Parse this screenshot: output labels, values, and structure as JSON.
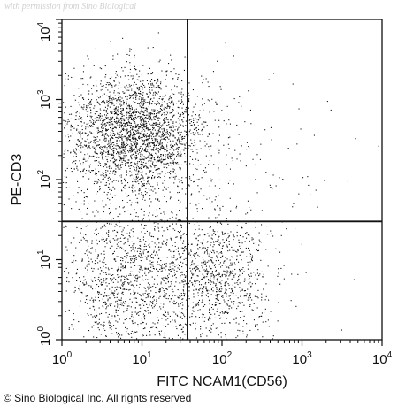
{
  "watermark": "with permission from Sino Biological",
  "copyright": "© Sino Biological Inc. All rights reserved",
  "chart_data": {
    "type": "scatter",
    "scale": "log",
    "x_axis": {
      "label": "FITC NCAM1(CD56)",
      "range": [
        1,
        10000
      ],
      "ticks": [
        {
          "value": 1,
          "base": "10",
          "exp": "0"
        },
        {
          "value": 10,
          "base": "10",
          "exp": "1"
        },
        {
          "value": 100,
          "base": "10",
          "exp": "2"
        },
        {
          "value": 1000,
          "base": "10",
          "exp": "3"
        },
        {
          "value": 10000,
          "base": "10",
          "exp": "4"
        }
      ]
    },
    "y_axis": {
      "label": "PE-CD3",
      "range": [
        1,
        10000
      ],
      "ticks": [
        {
          "value": 1,
          "base": "10",
          "exp": "0"
        },
        {
          "value": 10,
          "base": "10",
          "exp": "1"
        },
        {
          "value": 100,
          "base": "10",
          "exp": "2"
        },
        {
          "value": 1000,
          "base": "10",
          "exp": "3"
        },
        {
          "value": 10000,
          "base": "10",
          "exp": "4"
        }
      ]
    },
    "quadrant_gate": {
      "x": 37,
      "y": 30
    },
    "populations": [
      {
        "center_x": 8,
        "center_y": 380,
        "count": 2700,
        "spread_x_decades": 0.45,
        "spread_y_decades": 0.38
      },
      {
        "center_x": 8,
        "center_y": 6,
        "count": 1300,
        "spread_x_decades": 0.45,
        "spread_y_decades": 0.45
      },
      {
        "center_x": 90,
        "center_y": 6,
        "count": 850,
        "spread_x_decades": 0.32,
        "spread_y_decades": 0.4
      },
      {
        "center_x": 40,
        "center_y": 40,
        "count": 300,
        "spread_x_decades": 0.9,
        "spread_y_decades": 0.9
      }
    ],
    "point_color": "#111111"
  }
}
